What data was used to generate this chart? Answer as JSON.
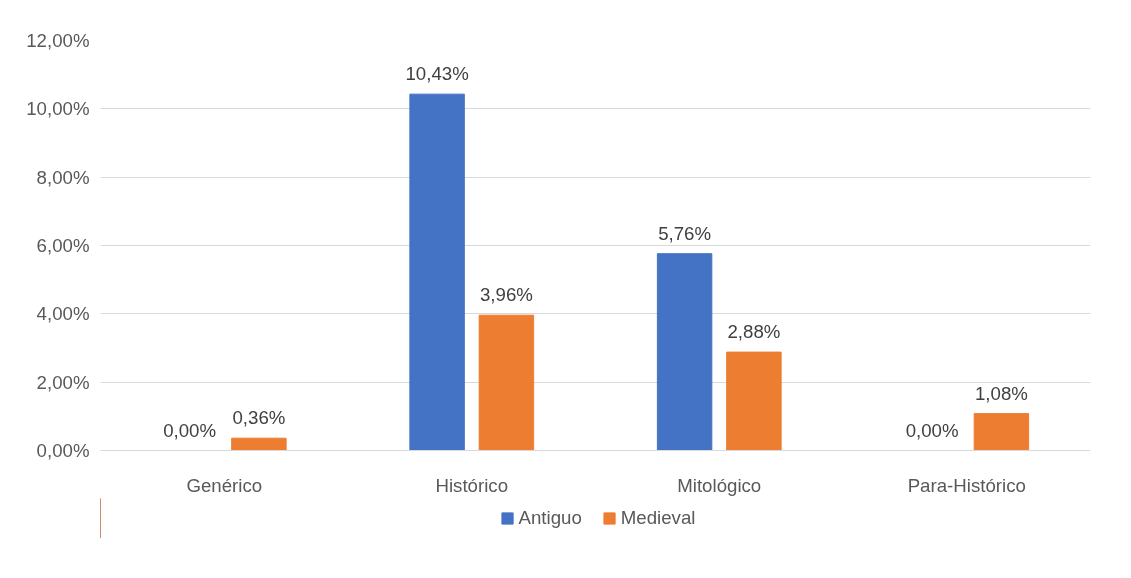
{
  "chart_data": {
    "type": "bar",
    "categories": [
      "Genérico",
      "Histórico",
      "Mitológico",
      "Para-Histórico"
    ],
    "series": [
      {
        "name": "Antiguo",
        "color": "#4472c4",
        "values": [
          0,
          10.43,
          5.76,
          0
        ],
        "value_labels": [
          "0,00%",
          "10,43%",
          "5,76%",
          "0,00%"
        ]
      },
      {
        "name": "Medieval",
        "color": "#ed7d31",
        "values": [
          0.36,
          3.96,
          2.88,
          1.08
        ],
        "value_labels": [
          "0,36%",
          "3,96%",
          "2,88%",
          "1,08%"
        ]
      }
    ],
    "ylim": [
      0,
      12
    ],
    "yticks": [
      {
        "value": 0,
        "label": "0,00%"
      },
      {
        "value": 2,
        "label": "2,00%"
      },
      {
        "value": 4,
        "label": "4,00%"
      },
      {
        "value": 6,
        "label": "6,00%"
      },
      {
        "value": 8,
        "label": "8,00%"
      },
      {
        "value": 10,
        "label": "10,00%"
      },
      {
        "value": 12,
        "label": "12,00%"
      }
    ],
    "grid": "y",
    "legend": "bottom"
  }
}
